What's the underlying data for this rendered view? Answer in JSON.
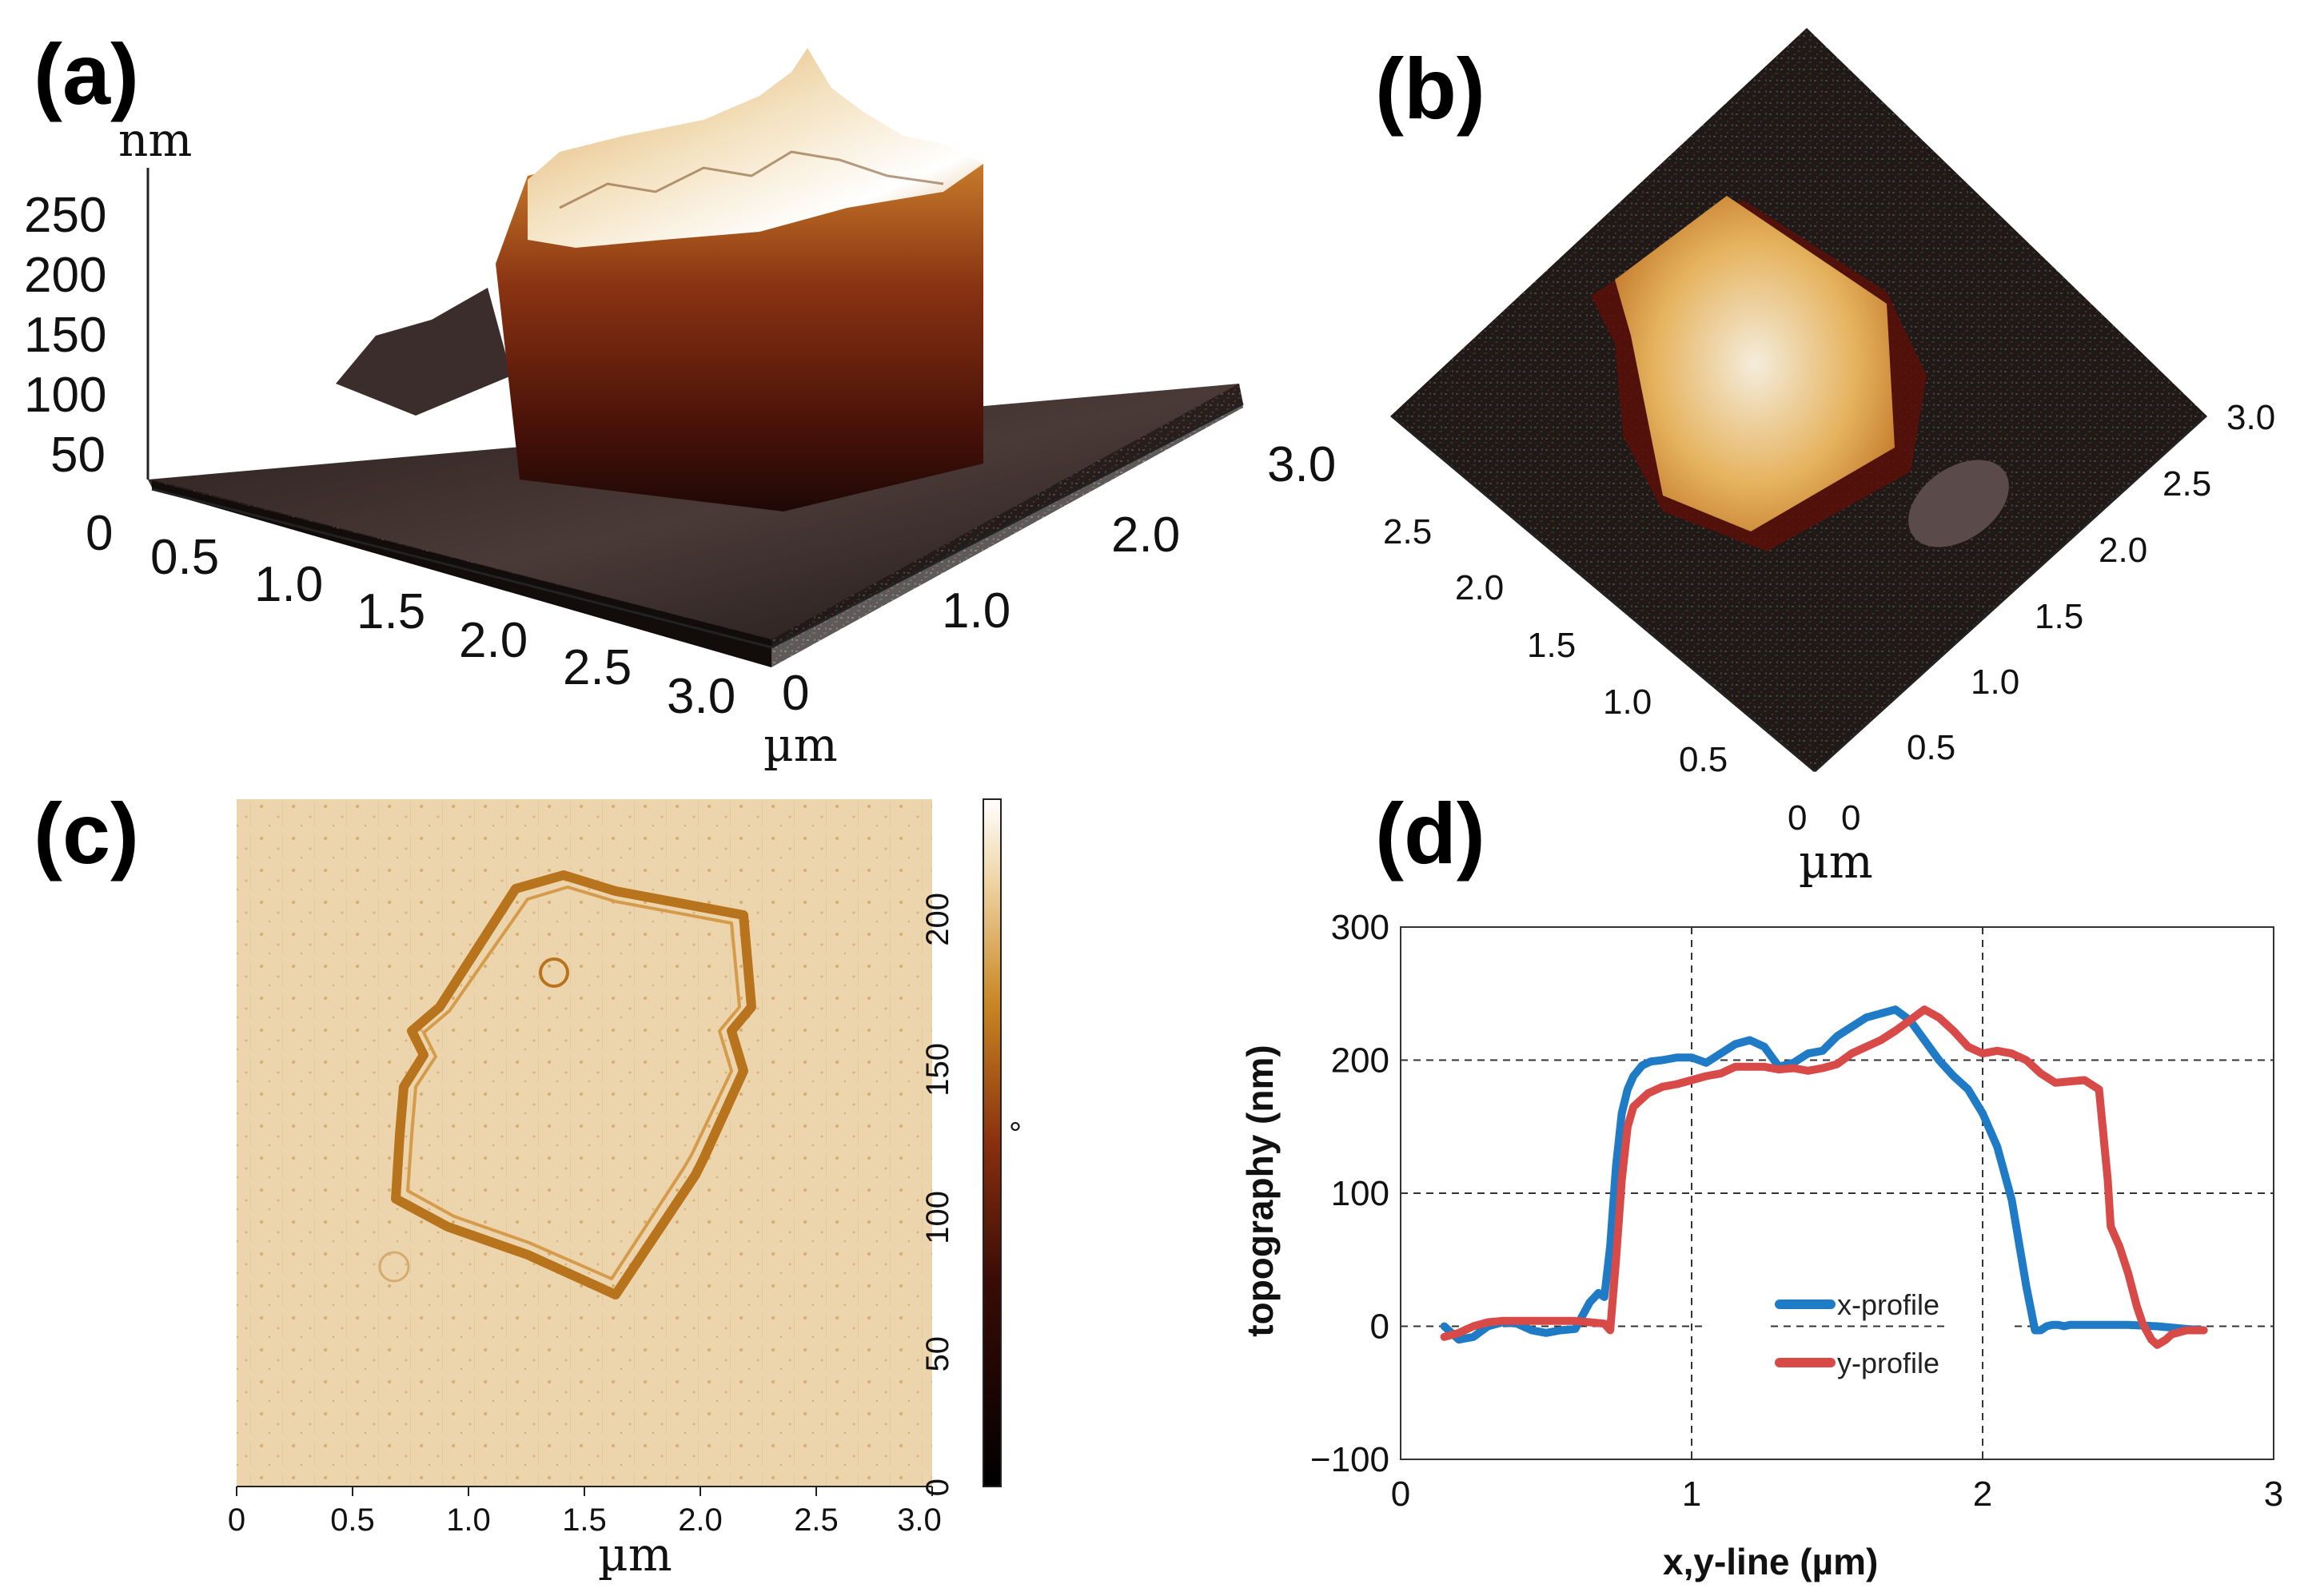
{
  "panel_labels": {
    "a": "(a)",
    "b": "(b)",
    "c": "(c)",
    "d": "(d)"
  },
  "panel_a": {
    "z_unit": "nm",
    "z_ticks": [
      "250",
      "200",
      "150",
      "100",
      "50",
      "0"
    ],
    "x_ticks": [
      "0.5",
      "1.0",
      "1.5",
      "2.0",
      "2.5",
      "3.0"
    ],
    "y_ticks": [
      "0",
      "1.0",
      "2.0",
      "3.0"
    ],
    "xy_unit": "µm"
  },
  "panel_b": {
    "left_ticks": [
      "2.5",
      "2.0",
      "1.5",
      "1.0",
      "0.5",
      "0"
    ],
    "right_ticks": [
      "0",
      "0.5",
      "1.0",
      "1.5",
      "2.0",
      "2.5",
      "3.0"
    ],
    "unit": "µm"
  },
  "panel_c": {
    "x_ticks": [
      "0",
      "0.5",
      "1.0",
      "1.5",
      "2.0",
      "2.5",
      "3.0"
    ],
    "x_label": "µm",
    "colorbar_ticks": [
      "200",
      "150",
      "100",
      "50",
      "0"
    ],
    "colorbar_unit": "°"
  },
  "chart_data": {
    "type": "line",
    "title": "",
    "xlabel": "x,y-line (µm)",
    "ylabel": "topography (nm)",
    "xlim": [
      0,
      3
    ],
    "ylim": [
      -100,
      300
    ],
    "x_ticks": [
      "0",
      "1",
      "2",
      "3"
    ],
    "y_ticks": [
      "300",
      "200",
      "100",
      "0",
      "−100"
    ],
    "grid": "dashed",
    "legend": "center",
    "series": [
      {
        "name": "x-profile",
        "color": "#1f7bc6",
        "x": [
          0.15,
          0.2,
          0.25,
          0.3,
          0.35,
          0.4,
          0.45,
          0.5,
          0.55,
          0.6,
          0.65,
          0.68,
          0.7,
          0.72,
          0.74,
          0.76,
          0.78,
          0.8,
          0.83,
          0.86,
          0.9,
          0.95,
          1.0,
          1.05,
          1.1,
          1.15,
          1.2,
          1.25,
          1.3,
          1.35,
          1.4,
          1.45,
          1.5,
          1.55,
          1.6,
          1.65,
          1.7,
          1.75,
          1.8,
          1.85,
          1.9,
          1.95,
          2.0,
          2.05,
          2.1,
          2.15,
          2.18,
          2.2,
          2.22,
          2.24,
          2.26,
          2.28,
          2.3,
          2.4,
          2.5,
          2.6,
          2.7,
          2.76
        ],
        "values": [
          0,
          -10,
          -8,
          0,
          3,
          2,
          -3,
          -5,
          -3,
          -2,
          18,
          25,
          22,
          60,
          120,
          160,
          178,
          188,
          196,
          199,
          200,
          202,
          202,
          198,
          205,
          212,
          215,
          210,
          195,
          198,
          205,
          207,
          218,
          225,
          232,
          235,
          238,
          230,
          215,
          200,
          188,
          178,
          160,
          135,
          95,
          30,
          -3,
          -3,
          0,
          1,
          1,
          0,
          1,
          1,
          1,
          0,
          -2,
          -3
        ]
      },
      {
        "name": "y-profile",
        "color": "#d84a48",
        "x": [
          0.15,
          0.2,
          0.25,
          0.3,
          0.35,
          0.4,
          0.45,
          0.5,
          0.55,
          0.6,
          0.65,
          0.7,
          0.72,
          0.74,
          0.76,
          0.78,
          0.8,
          0.85,
          0.9,
          0.95,
          1.0,
          1.05,
          1.1,
          1.15,
          1.2,
          1.25,
          1.3,
          1.35,
          1.4,
          1.45,
          1.5,
          1.55,
          1.6,
          1.65,
          1.7,
          1.75,
          1.8,
          1.85,
          1.9,
          1.95,
          2.0,
          2.05,
          2.1,
          2.15,
          2.2,
          2.25,
          2.3,
          2.35,
          2.4,
          2.43,
          2.44,
          2.45,
          2.47,
          2.5,
          2.53,
          2.55,
          2.58,
          2.6,
          2.63,
          2.65,
          2.7,
          2.76
        ],
        "values": [
          -8,
          -5,
          0,
          3,
          4,
          4,
          4,
          4,
          4,
          4,
          3,
          2,
          -3,
          50,
          110,
          150,
          165,
          175,
          180,
          182,
          185,
          188,
          190,
          195,
          195,
          195,
          193,
          194,
          192,
          194,
          197,
          205,
          210,
          215,
          222,
          230,
          238,
          232,
          222,
          210,
          205,
          207,
          205,
          200,
          190,
          183,
          184,
          185,
          178,
          110,
          75,
          70,
          60,
          40,
          15,
          2,
          -10,
          -14,
          -10,
          -6,
          -3,
          -3
        ]
      }
    ]
  }
}
